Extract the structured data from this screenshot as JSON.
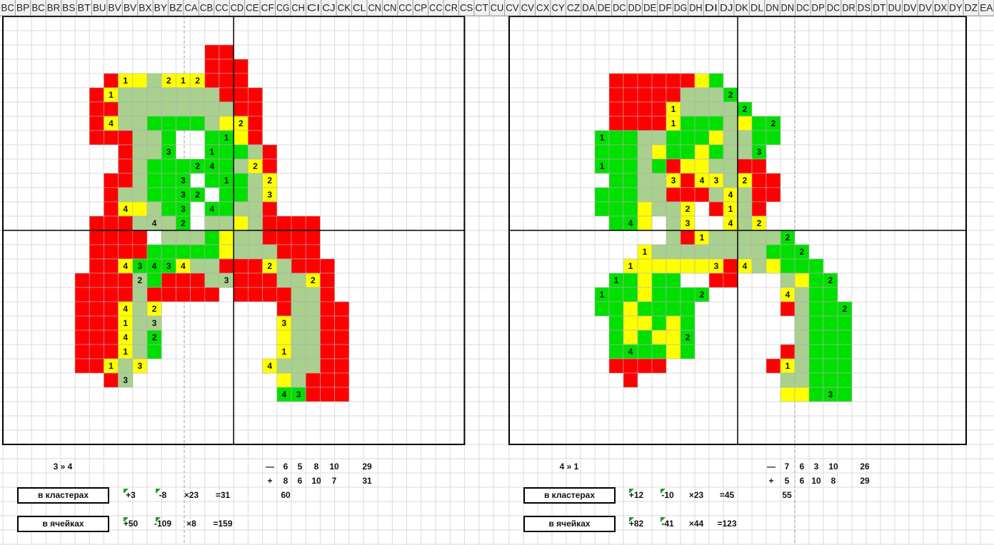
{
  "column_headers": [
    "BC",
    "BP",
    "BC",
    "BR",
    "BS",
    "BT",
    "BU",
    "BV",
    "BV",
    "BX",
    "BY",
    "BZ",
    "CA",
    "CB",
    "CC",
    "CD",
    "CE",
    "CF",
    "CG",
    "CH",
    "CI",
    "CJ",
    "CK",
    "CL",
    "CN",
    "CN",
    "CC",
    "CP",
    "CC",
    "CR",
    "CS",
    "CT",
    "CU",
    "CV",
    "CV",
    "CX",
    "CY",
    "CZ",
    "DA",
    "DE",
    "DC",
    "DD",
    "DE",
    "DF",
    "DG",
    "DH",
    "DI",
    "DJ",
    "DK",
    "DL",
    "DN",
    "DN",
    "DC",
    "DP",
    "DC",
    "DR",
    "DS",
    "DT",
    "DU",
    "DV",
    "DV",
    "DX",
    "DY",
    "DZ",
    "EA"
  ],
  "left": {
    "cell_numbers": [
      1,
      2,
      1,
      2,
      1,
      4,
      2,
      1,
      3,
      1,
      2,
      4,
      2,
      3,
      1,
      2,
      3,
      2,
      3,
      4,
      3,
      4,
      4,
      2,
      4,
      3,
      4,
      3,
      4,
      2,
      2,
      3,
      2,
      4,
      2,
      1,
      3,
      3,
      4,
      2,
      1,
      1,
      1,
      3,
      4,
      3,
      4,
      3
    ],
    "summary": {
      "title": "3 » 4",
      "minus_sign": "—",
      "minus_values": [
        6,
        5,
        8,
        10
      ],
      "minus_total": 29,
      "plus_sign": "+",
      "plus_values": [
        8,
        6,
        10,
        7
      ],
      "plus_total": 31,
      "sum": 60,
      "clusters": {
        "label": "в кластерах",
        "values": [
          "+3",
          "-8",
          "×23",
          "=31"
        ]
      },
      "cells": {
        "label": "в ячейках",
        "values": [
          "+50",
          "-109",
          "×8",
          "=159"
        ]
      }
    }
  },
  "right": {
    "cell_numbers": [
      2,
      1,
      2,
      1,
      2,
      1,
      3,
      1,
      3,
      4,
      3,
      2,
      4,
      2,
      1,
      4,
      3,
      4,
      2,
      1,
      2,
      1,
      2,
      1,
      3,
      4,
      1,
      2,
      1,
      2,
      4,
      2,
      2,
      4,
      1,
      3
    ],
    "summary": {
      "title": "4 » 1",
      "minus_sign": "—",
      "minus_values": [
        7,
        6,
        3,
        10
      ],
      "minus_total": 26,
      "plus_sign": "+",
      "plus_values": [
        5,
        6,
        10,
        8
      ],
      "plus_total": 29,
      "sum": 55,
      "clusters": {
        "label": "в кластерах",
        "values": [
          "+12",
          "-10",
          "×23",
          "=45"
        ]
      },
      "cells": {
        "label": "в ячейках",
        "values": [
          "+82",
          "-41",
          "×44",
          "=123"
        ]
      }
    }
  }
}
